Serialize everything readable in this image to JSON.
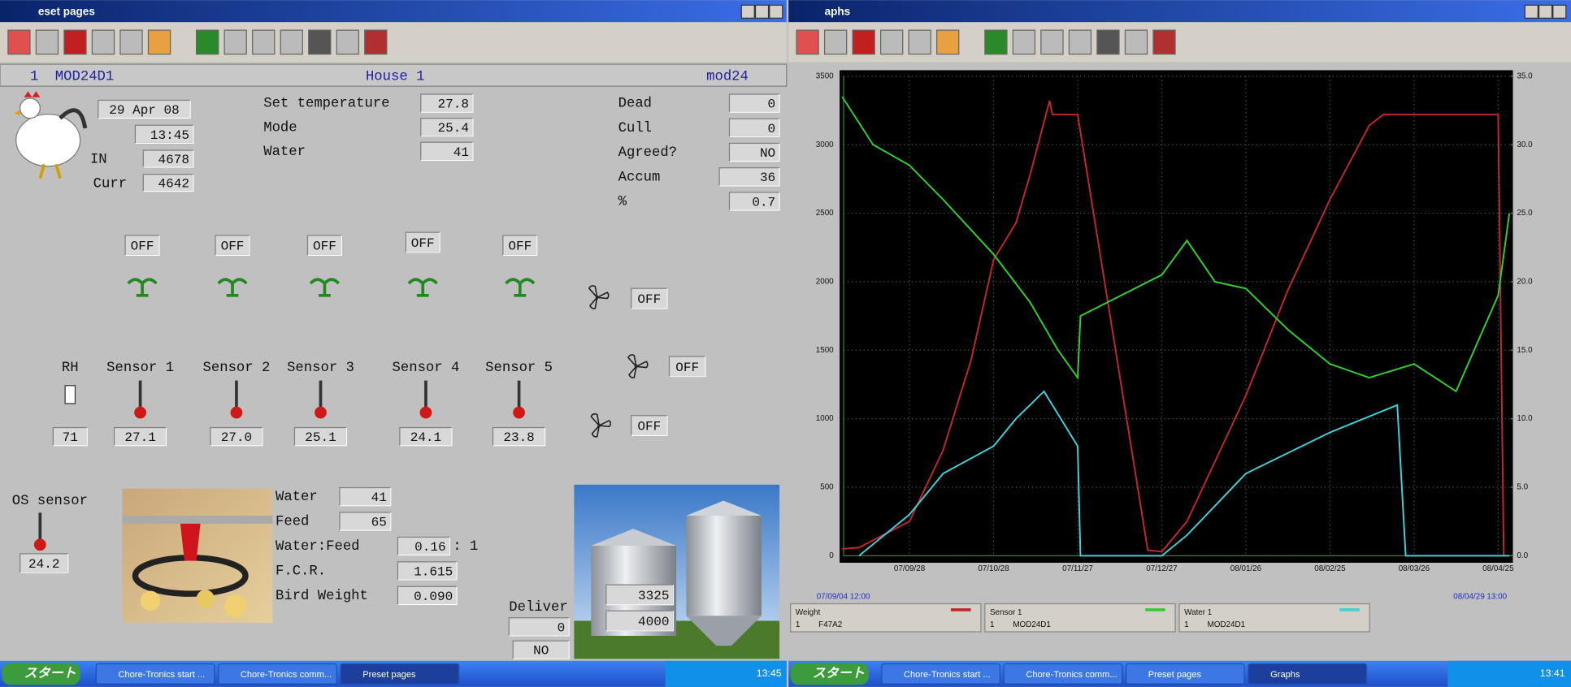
{
  "preset_window": {
    "title": "eset pages",
    "header": {
      "number": "1",
      "module": "MOD24D1",
      "house": "House 1",
      "code": "mod24"
    },
    "date": "29 Apr 08",
    "time": "13:45",
    "in": {
      "label": "IN",
      "value": "4678"
    },
    "curr": {
      "label": "Curr",
      "value": "4642"
    },
    "settings": [
      {
        "label": "Set temperature",
        "value": "27.8"
      },
      {
        "label": "Mode",
        "value": "25.4"
      },
      {
        "label": "Water",
        "value": "41"
      }
    ],
    "stats": [
      {
        "label": "Dead",
        "value": "0"
      },
      {
        "label": "Cull",
        "value": "0"
      },
      {
        "label": "Agreed?",
        "value": "NO"
      },
      {
        "label": "Accum",
        "value": "36"
      },
      {
        "label": "%",
        "value": "0.7"
      }
    ],
    "heaters": [
      "OFF",
      "OFF",
      "OFF",
      "OFF",
      "OFF"
    ],
    "fans": [
      "OFF",
      "OFF",
      "OFF"
    ],
    "sensors": [
      {
        "label": "RH",
        "value": "71"
      },
      {
        "label": "Sensor 1",
        "value": "27.1"
      },
      {
        "label": "Sensor 2",
        "value": "27.0"
      },
      {
        "label": "Sensor 3",
        "value": "25.1"
      },
      {
        "label": "Sensor 4",
        "value": "24.1"
      },
      {
        "label": "Sensor 5",
        "value": "23.8"
      }
    ],
    "os_sensor": {
      "label": "OS sensor",
      "value": "24.2"
    },
    "feed": [
      {
        "label": "Water",
        "value": "41"
      },
      {
        "label": "Feed",
        "value": "65"
      },
      {
        "label": "Water:Feed",
        "value": "0.16",
        "suffix": ": 1"
      },
      {
        "label": "F.C.R.",
        "value": "1.615"
      },
      {
        "label": "Bird Weight",
        "value": "0.090"
      }
    ],
    "silos": [
      "3325",
      "4000"
    ],
    "deliver": {
      "label": "Deliver",
      "value": "0",
      "status": "NO"
    }
  },
  "graph_window": {
    "title": "aphs"
  },
  "taskbar_left": {
    "start": "スタート",
    "items": [
      "Chore-Tronics start ...",
      "Chore-Tronics comm...",
      "Preset pages"
    ],
    "clock": "13:45"
  },
  "taskbar_right": {
    "start": "スタート",
    "items": [
      "Chore-Tronics start ...",
      "Chore-Tronics comm...",
      "Preset pages",
      "Graphs"
    ],
    "clock": "13:41"
  },
  "chart_data": {
    "type": "line",
    "background": "#000000",
    "grid": true,
    "xlim": [
      "07/09/04 12:00",
      "08/04/29 13:00"
    ],
    "xticks": [
      "07/09/28",
      "07/10/28",
      "07/11/27",
      "07/12/27",
      "08/01/26",
      "08/02/25",
      "08/03/26",
      "08/04/25"
    ],
    "ylim": [
      0,
      3500
    ],
    "yticks": [
      0,
      500,
      1000,
      1500,
      2000,
      2500,
      3000,
      3500
    ],
    "y2lim": [
      0,
      35
    ],
    "y2ticks": [
      {
        "value": 0,
        "label": "0.0"
      },
      {
        "value": 5,
        "label": "5.0"
      },
      {
        "value": 10,
        "label": "10.0"
      },
      {
        "value": 15,
        "label": "15.0"
      },
      {
        "value": 20,
        "label": "20.0"
      },
      {
        "value": 25,
        "label": "25.0"
      },
      {
        "value": 30,
        "label": "30.0"
      },
      {
        "value": 35,
        "label": "35.0"
      }
    ],
    "series": [
      {
        "name": "Weight",
        "number": "1",
        "module": "F47A2",
        "color": "#c0282c",
        "x": [
          "07/09/04",
          "07/09/10",
          "07/09/28",
          "07/10/10",
          "07/10/20",
          "07/10/28",
          "07/11/05",
          "07/11/10",
          "07/11/17",
          "07/11/18",
          "07/11/27",
          "07/12/22",
          "07/12/27",
          "08/01/05",
          "08/01/26",
          "08/02/10",
          "08/02/25",
          "08/03/10",
          "08/03/15",
          "08/04/25",
          "08/04/27"
        ],
        "values": [
          50,
          60,
          250,
          770,
          1430,
          2160,
          2430,
          2780,
          3320,
          3220,
          3220,
          40,
          30,
          250,
          1170,
          1940,
          2600,
          3140,
          3220,
          3220,
          0
        ]
      },
      {
        "name": "Sensor 1",
        "number": "1",
        "module": "MOD24D1",
        "color": "#33cc33",
        "axis": "y2",
        "x": [
          "07/09/04",
          "07/09/15",
          "07/09/28",
          "07/10/10",
          "07/10/28",
          "07/11/10",
          "07/11/20",
          "07/11/27",
          "07/11/28",
          "07/12/27",
          "08/01/05",
          "08/01/15",
          "08/01/26",
          "08/02/10",
          "08/02/25",
          "08/03/10",
          "08/03/26",
          "08/04/10",
          "08/04/25",
          "08/04/29"
        ],
        "values": [
          33.5,
          30,
          28.5,
          26,
          22,
          18.5,
          15,
          13,
          17.5,
          20.5,
          23,
          20,
          19.5,
          16.5,
          14,
          13,
          14,
          12,
          19,
          25
        ]
      },
      {
        "name": "Water 1",
        "number": "1",
        "module": "MOD24D1",
        "color": "#40d0d8",
        "x": [
          "07/09/10",
          "07/09/28",
          "07/10/10",
          "07/10/28",
          "07/11/05",
          "07/11/15",
          "07/11/27",
          "07/11/28",
          "07/12/27",
          "08/01/05",
          "08/01/26",
          "08/02/25",
          "08/03/20",
          "08/03/23",
          "08/04/29"
        ],
        "values": [
          0,
          300,
          600,
          800,
          1000,
          1200,
          800,
          0,
          0,
          150,
          600,
          900,
          1100,
          0,
          0
        ]
      }
    ]
  }
}
